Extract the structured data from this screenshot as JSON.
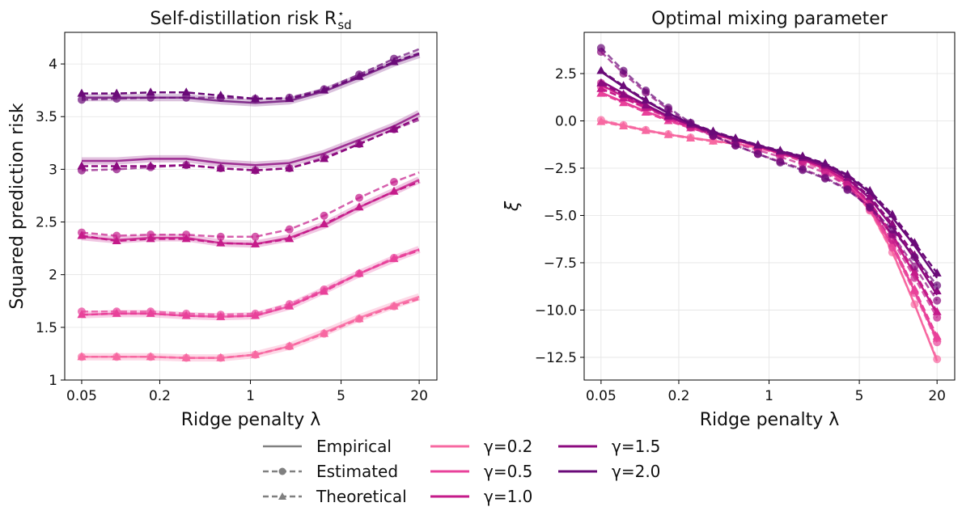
{
  "colors": {
    "gamma_0.2": "#f768a1",
    "gamma_0.5": "#e8419a",
    "gamma_1.0": "#c51b8a",
    "gamma_1.5": "#8c0a7f",
    "gamma_2.0": "#6a0a78",
    "legend_gray": "#808080"
  },
  "legend": {
    "methods": [
      {
        "label": "Empirical",
        "style": "solid",
        "marker": "none"
      },
      {
        "label": "Estimated",
        "style": "dashed",
        "marker": "circle"
      },
      {
        "label": "Theoretical",
        "style": "dashed",
        "marker": "triangle"
      }
    ],
    "gammas": [
      "γ=0.2",
      "γ=0.5",
      "γ=1.0",
      "γ=1.5",
      "γ=2.0"
    ]
  },
  "chart_data": [
    {
      "type": "line",
      "title": "Self-distillation risk R",
      "title_sub": "sd",
      "title_sup": "⋆",
      "xlabel": "Ridge penalty λ",
      "ylabel": "Squared prediction risk",
      "xscale": "log",
      "xlim": [
        0.037,
        27.4
      ],
      "ylim": [
        1.0,
        4.3
      ],
      "xticks": [
        0.05,
        0.2,
        1,
        5,
        20
      ],
      "xtick_labels": [
        "0.05",
        "0.2",
        "1",
        "5",
        "20"
      ],
      "yticks": [
        1,
        1.5,
        2,
        2.5,
        3,
        3.5,
        4
      ],
      "ytick_labels": [
        "1",
        "1.5",
        "2",
        "2.5",
        "3",
        "3.5",
        "4"
      ],
      "grid": true,
      "x": [
        0.05,
        0.093,
        0.17,
        0.32,
        0.59,
        1.09,
        2.0,
        3.7,
        6.9,
        12.8,
        20
      ],
      "series": [
        {
          "gamma": "0.2",
          "method": "Empirical",
          "values": [
            1.22,
            1.22,
            1.22,
            1.21,
            1.21,
            1.24,
            1.32,
            1.45,
            1.59,
            1.71,
            1.79
          ]
        },
        {
          "gamma": "0.2",
          "method": "Estimated",
          "values": [
            1.22,
            1.22,
            1.22,
            1.21,
            1.21,
            1.24,
            1.32,
            1.44,
            1.58,
            1.7,
            1.77
          ]
        },
        {
          "gamma": "0.2",
          "method": "Theoretical",
          "values": [
            1.22,
            1.22,
            1.22,
            1.21,
            1.21,
            1.24,
            1.32,
            1.44,
            1.58,
            1.7,
            1.77
          ]
        },
        {
          "gamma": "0.5",
          "method": "Empirical",
          "values": [
            1.62,
            1.63,
            1.63,
            1.61,
            1.6,
            1.61,
            1.7,
            1.85,
            2.01,
            2.15,
            2.24
          ]
        },
        {
          "gamma": "0.5",
          "method": "Estimated",
          "values": [
            1.65,
            1.65,
            1.65,
            1.63,
            1.62,
            1.63,
            1.72,
            1.86,
            2.01,
            2.16,
            2.24
          ]
        },
        {
          "gamma": "0.5",
          "method": "Theoretical",
          "values": [
            1.62,
            1.63,
            1.63,
            1.61,
            1.6,
            1.61,
            1.7,
            1.84,
            2.01,
            2.15,
            2.23
          ]
        },
        {
          "gamma": "1.0",
          "method": "Empirical",
          "values": [
            2.36,
            2.33,
            2.35,
            2.35,
            2.3,
            2.29,
            2.35,
            2.47,
            2.64,
            2.79,
            2.9
          ]
        },
        {
          "gamma": "1.0",
          "method": "Estimated",
          "values": [
            2.4,
            2.37,
            2.38,
            2.38,
            2.36,
            2.36,
            2.43,
            2.56,
            2.73,
            2.88,
            2.97
          ]
        },
        {
          "gamma": "1.0",
          "method": "Theoretical",
          "values": [
            2.37,
            2.32,
            2.34,
            2.34,
            2.3,
            2.29,
            2.34,
            2.48,
            2.64,
            2.79,
            2.88
          ]
        },
        {
          "gamma": "1.5",
          "method": "Empirical",
          "values": [
            3.08,
            3.08,
            3.1,
            3.1,
            3.06,
            3.04,
            3.06,
            3.15,
            3.28,
            3.41,
            3.53
          ]
        },
        {
          "gamma": "1.5",
          "method": "Estimated",
          "values": [
            2.99,
            3.0,
            3.02,
            3.04,
            3.01,
            2.99,
            3.01,
            3.11,
            3.24,
            3.38,
            3.47
          ]
        },
        {
          "gamma": "1.5",
          "method": "Theoretical",
          "values": [
            3.03,
            3.03,
            3.03,
            3.04,
            3.01,
            2.99,
            3.01,
            3.1,
            3.24,
            3.38,
            3.49
          ]
        },
        {
          "gamma": "2.0",
          "method": "Empirical",
          "values": [
            3.68,
            3.68,
            3.68,
            3.68,
            3.65,
            3.63,
            3.65,
            3.74,
            3.87,
            4.01,
            4.09
          ]
        },
        {
          "gamma": "2.0",
          "method": "Estimated",
          "values": [
            3.66,
            3.67,
            3.68,
            3.68,
            3.68,
            3.67,
            3.68,
            3.76,
            3.9,
            4.05,
            4.14
          ]
        },
        {
          "gamma": "2.0",
          "method": "Theoretical",
          "values": [
            3.72,
            3.72,
            3.73,
            3.73,
            3.7,
            3.67,
            3.67,
            3.75,
            3.88,
            4.02,
            4.1
          ]
        }
      ]
    },
    {
      "type": "line",
      "title": "Optimal mixing parameter",
      "xlabel": "Ridge penalty λ",
      "ylabel": "ξ",
      "xscale": "log",
      "xlim": [
        0.037,
        27.4
      ],
      "ylim": [
        -13.7,
        4.68
      ],
      "xticks": [
        0.05,
        0.2,
        1,
        5,
        20
      ],
      "xtick_labels": [
        "0.05",
        "0.2",
        "1",
        "5",
        "20"
      ],
      "yticks": [
        2.5,
        0,
        -2.5,
        -5,
        -7.5,
        -10,
        -12.5
      ],
      "ytick_labels": [
        "2.5",
        "0.0",
        "−2.5",
        "−5.0",
        "−7.5",
        "−10.0",
        "−12.5"
      ],
      "grid": true,
      "x": [
        0.05,
        0.0746,
        0.111,
        0.166,
        0.247,
        0.369,
        0.55,
        0.82,
        1.22,
        1.82,
        2.72,
        4.05,
        6.04,
        9.0,
        13.4,
        20
      ],
      "series": [
        {
          "gamma": "0.2",
          "method": "Empirical",
          "values": [
            0.0,
            -0.25,
            -0.5,
            -0.72,
            -0.9,
            -1.05,
            -1.2,
            -1.42,
            -1.7,
            -2.05,
            -2.55,
            -3.35,
            -4.7,
            -6.9,
            -9.7,
            -12.7
          ]
        },
        {
          "gamma": "0.2",
          "method": "Estimated",
          "values": [
            0.05,
            -0.22,
            -0.48,
            -0.7,
            -0.88,
            -1.05,
            -1.22,
            -1.45,
            -1.75,
            -2.1,
            -2.6,
            -3.4,
            -4.75,
            -6.95,
            -9.7,
            -12.6
          ]
        },
        {
          "gamma": "0.2",
          "method": "Theoretical",
          "values": [
            -0.05,
            -0.28,
            -0.52,
            -0.74,
            -0.92,
            -1.08,
            -1.22,
            -1.42,
            -1.68,
            -2.0,
            -2.5,
            -3.25,
            -4.5,
            -6.5,
            -9.0,
            -11.5
          ]
        },
        {
          "gamma": "0.5",
          "method": "Empirical",
          "values": [
            1.5,
            1.0,
            0.5,
            0.05,
            -0.35,
            -0.7,
            -1.0,
            -1.35,
            -1.7,
            -2.05,
            -2.55,
            -3.35,
            -4.6,
            -6.6,
            -9.0,
            -11.6
          ]
        },
        {
          "gamma": "0.5",
          "method": "Estimated",
          "values": [
            1.8,
            1.2,
            0.65,
            0.15,
            -0.3,
            -0.7,
            -1.05,
            -1.4,
            -1.75,
            -2.15,
            -2.65,
            -3.45,
            -4.7,
            -6.7,
            -9.1,
            -11.7
          ]
        },
        {
          "gamma": "0.5",
          "method": "Theoretical",
          "values": [
            1.45,
            0.95,
            0.45,
            0.0,
            -0.38,
            -0.72,
            -1.02,
            -1.35,
            -1.7,
            -2.05,
            -2.5,
            -3.3,
            -4.5,
            -6.5,
            -8.9,
            -11.4
          ]
        },
        {
          "gamma": "1.0",
          "method": "Empirical",
          "values": [
            1.9,
            1.3,
            0.75,
            0.2,
            -0.25,
            -0.65,
            -1.0,
            -1.35,
            -1.7,
            -2.05,
            -2.5,
            -3.2,
            -4.35,
            -6.1,
            -8.1,
            -10.2
          ]
        },
        {
          "gamma": "1.0",
          "method": "Estimated",
          "values": [
            2.0,
            1.35,
            0.75,
            0.15,
            -0.35,
            -0.8,
            -1.2,
            -1.55,
            -1.9,
            -2.3,
            -2.75,
            -3.45,
            -4.55,
            -6.3,
            -8.3,
            -10.4
          ]
        },
        {
          "gamma": "1.0",
          "method": "Theoretical",
          "values": [
            1.7,
            1.2,
            0.7,
            0.2,
            -0.25,
            -0.62,
            -0.98,
            -1.32,
            -1.68,
            -2.02,
            -2.45,
            -3.15,
            -4.3,
            -6.0,
            -8.0,
            -10.1
          ]
        },
        {
          "gamma": "1.5",
          "method": "Empirical",
          "values": [
            2.1,
            1.45,
            0.85,
            0.25,
            -0.22,
            -0.62,
            -0.98,
            -1.33,
            -1.65,
            -2.0,
            -2.4,
            -3.05,
            -4.1,
            -5.6,
            -7.3,
            -9.2
          ]
        },
        {
          "gamma": "1.5",
          "method": "Estimated",
          "values": [
            3.65,
            2.5,
            1.5,
            0.6,
            -0.15,
            -0.8,
            -1.3,
            -1.75,
            -2.15,
            -2.55,
            -3.0,
            -3.6,
            -4.6,
            -6.0,
            -7.7,
            -9.5
          ]
        },
        {
          "gamma": "1.5",
          "method": "Theoretical",
          "values": [
            2.0,
            1.4,
            0.82,
            0.25,
            -0.2,
            -0.6,
            -0.95,
            -1.3,
            -1.62,
            -1.95,
            -2.35,
            -3.0,
            -4.0,
            -5.45,
            -7.1,
            -9.0
          ]
        },
        {
          "gamma": "2.0",
          "method": "Empirical",
          "values": [
            2.6,
            1.8,
            1.05,
            0.4,
            -0.15,
            -0.58,
            -0.95,
            -1.3,
            -1.6,
            -1.9,
            -2.3,
            -2.9,
            -3.8,
            -5.1,
            -6.6,
            -8.3
          ]
        },
        {
          "gamma": "2.0",
          "method": "Estimated",
          "values": [
            3.85,
            2.65,
            1.6,
            0.7,
            -0.1,
            -0.75,
            -1.3,
            -1.75,
            -2.2,
            -2.6,
            -3.05,
            -3.65,
            -4.55,
            -5.75,
            -7.2,
            -8.7
          ]
        },
        {
          "gamma": "2.0",
          "method": "Theoretical",
          "values": [
            2.65,
            1.85,
            1.1,
            0.42,
            -0.12,
            -0.55,
            -0.92,
            -1.27,
            -1.57,
            -1.87,
            -2.25,
            -2.85,
            -3.7,
            -4.95,
            -6.45,
            -8.05
          ]
        }
      ]
    }
  ]
}
